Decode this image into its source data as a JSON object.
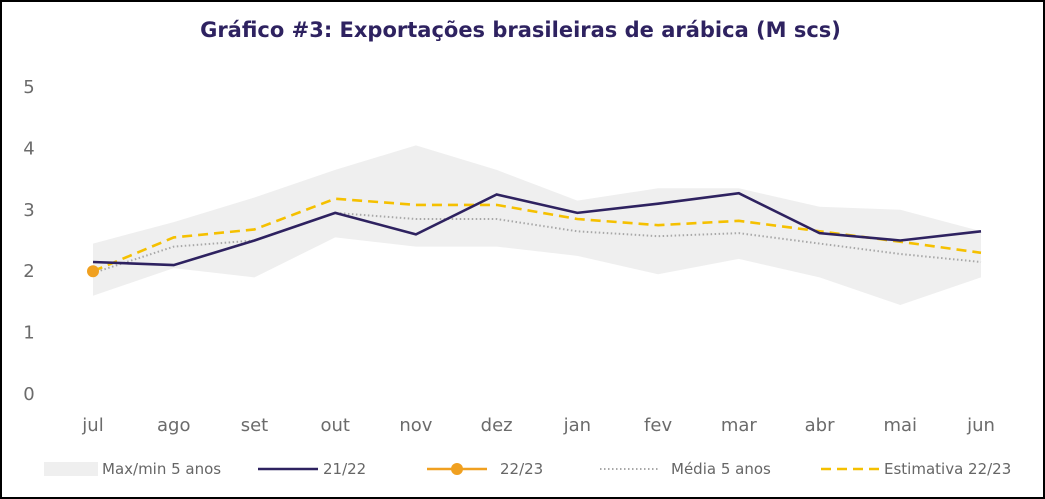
{
  "chart_data": {
    "type": "line",
    "title": "Gráfico #3: Exportações brasileiras de arábica (M scs)",
    "xlabel": "",
    "ylabel": "",
    "categories": [
      "jul",
      "ago",
      "set",
      "out",
      "nov",
      "dez",
      "jan",
      "fev",
      "mar",
      "abr",
      "mai",
      "jun"
    ],
    "ylim": [
      0,
      5
    ],
    "yticks": [
      0,
      1,
      2,
      3,
      4,
      5
    ],
    "grid": false,
    "legend_position": "bottom",
    "band": {
      "name": "Max/min 5 anos",
      "color": "#efefef",
      "max": [
        2.45,
        2.8,
        3.2,
        3.65,
        4.05,
        3.65,
        3.15,
        3.35,
        3.35,
        3.05,
        3.0,
        2.65
      ],
      "min": [
        1.6,
        2.05,
        1.9,
        2.55,
        2.4,
        2.4,
        2.25,
        1.95,
        2.2,
        1.9,
        1.45,
        1.9
      ]
    },
    "series": [
      {
        "name": "21/22",
        "color": "#2e2260",
        "style": "solid",
        "values": [
          2.15,
          2.1,
          2.5,
          2.95,
          2.6,
          3.25,
          2.95,
          3.1,
          3.27,
          2.62,
          2.5,
          2.65
        ]
      },
      {
        "name": "22/23",
        "color": "#f0a020",
        "style": "marker",
        "values": [
          2.0,
          null,
          null,
          null,
          null,
          null,
          null,
          null,
          null,
          null,
          null,
          null
        ]
      },
      {
        "name": "Média 5 anos",
        "color": "#a8a8a8",
        "style": "dotted",
        "values": [
          1.97,
          2.4,
          2.5,
          2.95,
          2.85,
          2.85,
          2.65,
          2.57,
          2.62,
          2.45,
          2.28,
          2.15
        ]
      },
      {
        "name": "Estimativa 22/23",
        "color": "#f5c000",
        "style": "dashed",
        "values": [
          2.0,
          2.55,
          2.68,
          3.18,
          3.08,
          3.08,
          2.85,
          2.75,
          2.82,
          2.65,
          2.48,
          2.3
        ]
      }
    ]
  }
}
